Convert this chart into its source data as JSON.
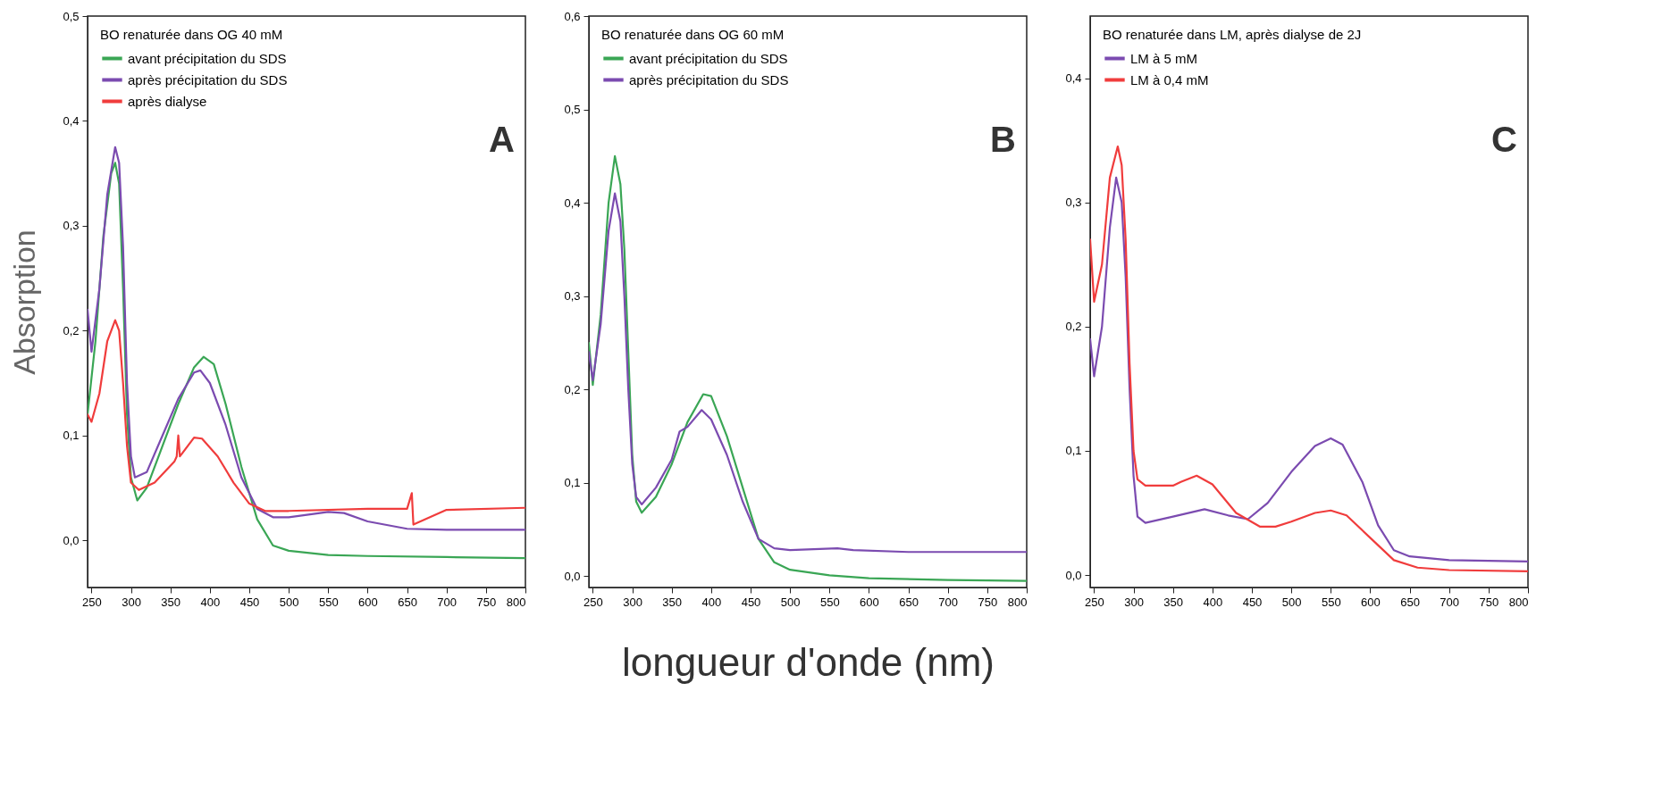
{
  "chart_data": [
    {
      "type": "line",
      "ylabel": "Absorption",
      "legend_title": "BO renaturée dans OG 40 mM",
      "legend": "top left",
      "annotations": [
        "A"
      ],
      "xlim": [
        245,
        800
      ],
      "xticks": [
        250,
        300,
        350,
        400,
        450,
        500,
        550,
        600,
        650,
        700,
        750,
        800
      ],
      "ylim": [
        -0.045,
        0.5
      ],
      "yticks": [
        {
          "value": 0,
          "label": "0,0"
        },
        {
          "value": 0.1,
          "label": "0,1"
        },
        {
          "value": 0.2,
          "label": "0,2"
        },
        {
          "value": 0.3,
          "label": "0,3"
        },
        {
          "value": 0.4,
          "label": "0,4"
        },
        {
          "value": 0.5,
          "label": "0,5"
        }
      ],
      "series": [
        {
          "name": "avant précipitation du SDS",
          "color": "#3aa655",
          "x": [
            245,
            255,
            265,
            275,
            280,
            285,
            290,
            295,
            300,
            308,
            320,
            340,
            360,
            380,
            392,
            405,
            420,
            440,
            460,
            480,
            500,
            550,
            600,
            700,
            800
          ],
          "values": [
            0.12,
            0.19,
            0.29,
            0.35,
            0.36,
            0.34,
            0.24,
            0.12,
            0.06,
            0.038,
            0.05,
            0.09,
            0.13,
            0.165,
            0.175,
            0.168,
            0.13,
            0.07,
            0.02,
            -0.005,
            -0.01,
            -0.014,
            -0.015,
            -0.016,
            -0.017
          ]
        },
        {
          "name": "après précipitation du SDS",
          "color": "#7b4bb0",
          "x": [
            245,
            250,
            260,
            270,
            280,
            285,
            290,
            295,
            300,
            305,
            320,
            340,
            360,
            380,
            388,
            400,
            420,
            440,
            460,
            480,
            500,
            550,
            570,
            600,
            650,
            700,
            800
          ],
          "values": [
            0.22,
            0.18,
            0.24,
            0.33,
            0.375,
            0.36,
            0.28,
            0.15,
            0.08,
            0.06,
            0.065,
            0.1,
            0.135,
            0.16,
            0.162,
            0.15,
            0.11,
            0.06,
            0.03,
            0.022,
            0.022,
            0.027,
            0.026,
            0.018,
            0.011,
            0.01,
            0.01
          ]
        },
        {
          "name": "après dialyse",
          "color": "#f03c3c",
          "x": [
            245,
            250,
            260,
            270,
            280,
            285,
            290,
            295,
            300,
            310,
            330,
            355,
            358,
            360,
            362,
            380,
            390,
            410,
            430,
            450,
            470,
            500,
            600,
            650,
            656,
            658,
            700,
            800
          ],
          "values": [
            0.12,
            0.113,
            0.14,
            0.19,
            0.21,
            0.2,
            0.15,
            0.09,
            0.055,
            0.048,
            0.055,
            0.075,
            0.08,
            0.1,
            0.08,
            0.098,
            0.097,
            0.08,
            0.055,
            0.035,
            0.028,
            0.028,
            0.03,
            0.03,
            0.045,
            0.015,
            0.029,
            0.031
          ]
        }
      ]
    },
    {
      "type": "line",
      "xlabel": "longueur d'onde (nm)",
      "legend_title": "BO renaturée dans OG 60 mM",
      "legend": "top left",
      "annotations": [
        "B"
      ],
      "xlim": [
        245,
        800
      ],
      "xticks": [
        250,
        300,
        350,
        400,
        450,
        500,
        550,
        600,
        650,
        700,
        750,
        800
      ],
      "ylim": [
        -0.012,
        0.6
      ],
      "yticks": [
        {
          "value": 0,
          "label": "0,0"
        },
        {
          "value": 0.1,
          "label": "0,1"
        },
        {
          "value": 0.2,
          "label": "0,2"
        },
        {
          "value": 0.3,
          "label": "0,3"
        },
        {
          "value": 0.4,
          "label": "0,4"
        },
        {
          "value": 0.5,
          "label": "0,5"
        },
        {
          "value": 0.6,
          "label": "0,6"
        }
      ],
      "series": [
        {
          "name": "avant précipitation du SDS",
          "color": "#3aa655",
          "x": [
            245,
            250,
            260,
            270,
            278,
            285,
            290,
            295,
            300,
            305,
            312,
            330,
            350,
            370,
            390,
            400,
            420,
            440,
            460,
            480,
            500,
            550,
            600,
            700,
            800
          ],
          "values": [
            0.25,
            0.205,
            0.28,
            0.4,
            0.45,
            0.42,
            0.35,
            0.24,
            0.13,
            0.08,
            0.068,
            0.085,
            0.12,
            0.165,
            0.195,
            0.193,
            0.15,
            0.095,
            0.04,
            0.015,
            0.007,
            0.001,
            -0.002,
            -0.004,
            -0.005
          ]
        },
        {
          "name": "après précipitation du SDS",
          "color": "#7b4bb0",
          "x": [
            245,
            250,
            260,
            270,
            278,
            285,
            290,
            295,
            300,
            305,
            312,
            330,
            350,
            360,
            370,
            388,
            400,
            420,
            440,
            460,
            480,
            500,
            560,
            580,
            650,
            700,
            800
          ],
          "values": [
            0.24,
            0.21,
            0.27,
            0.37,
            0.41,
            0.38,
            0.3,
            0.2,
            0.12,
            0.085,
            0.077,
            0.095,
            0.125,
            0.155,
            0.16,
            0.178,
            0.168,
            0.13,
            0.08,
            0.04,
            0.03,
            0.028,
            0.03,
            0.028,
            0.026,
            0.026,
            0.026
          ]
        }
      ]
    },
    {
      "type": "line",
      "legend_title": "BO renaturée dans LM, après dialyse de 2J",
      "legend": "top left",
      "annotations": [
        "C"
      ],
      "xlim": [
        245,
        800
      ],
      "xticks": [
        250,
        300,
        350,
        400,
        450,
        500,
        550,
        600,
        650,
        700,
        750,
        800
      ],
      "ylim": [
        -0.01,
        0.45
      ],
      "yticks": [
        {
          "value": 0,
          "label": "0,0"
        },
        {
          "value": 0.1,
          "label": "0,1"
        },
        {
          "value": 0.2,
          "label": "0,2"
        },
        {
          "value": 0.3,
          "label": "0,3"
        },
        {
          "value": 0.4,
          "label": "0,4"
        }
      ],
      "series": [
        {
          "name": "LM à 5 mM",
          "color": "#7b4bb0",
          "x": [
            245,
            250,
            260,
            270,
            278,
            285,
            290,
            295,
            300,
            305,
            315,
            350,
            390,
            420,
            445,
            470,
            500,
            530,
            550,
            565,
            590,
            610,
            630,
            650,
            700,
            800
          ],
          "values": [
            0.19,
            0.16,
            0.2,
            0.28,
            0.32,
            0.3,
            0.24,
            0.15,
            0.08,
            0.047,
            0.042,
            0.047,
            0.053,
            0.048,
            0.045,
            0.058,
            0.083,
            0.104,
            0.11,
            0.105,
            0.075,
            0.04,
            0.02,
            0.015,
            0.012,
            0.011
          ]
        },
        {
          "name": "LM à 0,4 mM",
          "color": "#f03c3c",
          "x": [
            245,
            250,
            260,
            270,
            280,
            285,
            290,
            295,
            300,
            305,
            315,
            350,
            360,
            380,
            400,
            430,
            460,
            480,
            500,
            530,
            550,
            570,
            600,
            630,
            660,
            700,
            800
          ],
          "values": [
            0.27,
            0.22,
            0.25,
            0.32,
            0.345,
            0.33,
            0.27,
            0.17,
            0.1,
            0.077,
            0.072,
            0.072,
            0.075,
            0.08,
            0.073,
            0.05,
            0.039,
            0.039,
            0.043,
            0.05,
            0.052,
            0.048,
            0.03,
            0.012,
            0.006,
            0.004,
            0.003
          ]
        }
      ]
    }
  ]
}
